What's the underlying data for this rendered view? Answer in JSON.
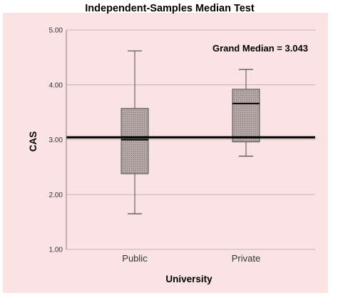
{
  "chart_data": {
    "type": "boxplot",
    "title": "Independent-Samples Median Test",
    "xlabel": "University",
    "ylabel": "CAS",
    "ylim": [
      1.0,
      5.0
    ],
    "y_ticks": [
      "1.00",
      "2.00",
      "3.00",
      "4.00",
      "5.00"
    ],
    "grid": true,
    "categories": [
      "Public",
      "Private"
    ],
    "boxes": [
      {
        "category": "Public",
        "whisker_low": 1.65,
        "q1": 2.38,
        "median": 3.0,
        "q3": 3.57,
        "whisker_high": 4.62
      },
      {
        "category": "Private",
        "whisker_low": 2.7,
        "q1": 2.96,
        "median": 3.66,
        "q3": 3.92,
        "whisker_high": 4.28
      }
    ],
    "reference_line": {
      "value": 3.043,
      "label": "Grand Median = 3.043"
    }
  },
  "colors": {
    "background": "#fbe3e3",
    "plot_area": "#fbe3e3",
    "grid": "#c7b3b3",
    "box_fill": "#b5a6a6",
    "box_dots": "#6e6262",
    "box_stroke": "#4d4d4d",
    "median_line": "#000000",
    "reference_line": "#000000"
  }
}
